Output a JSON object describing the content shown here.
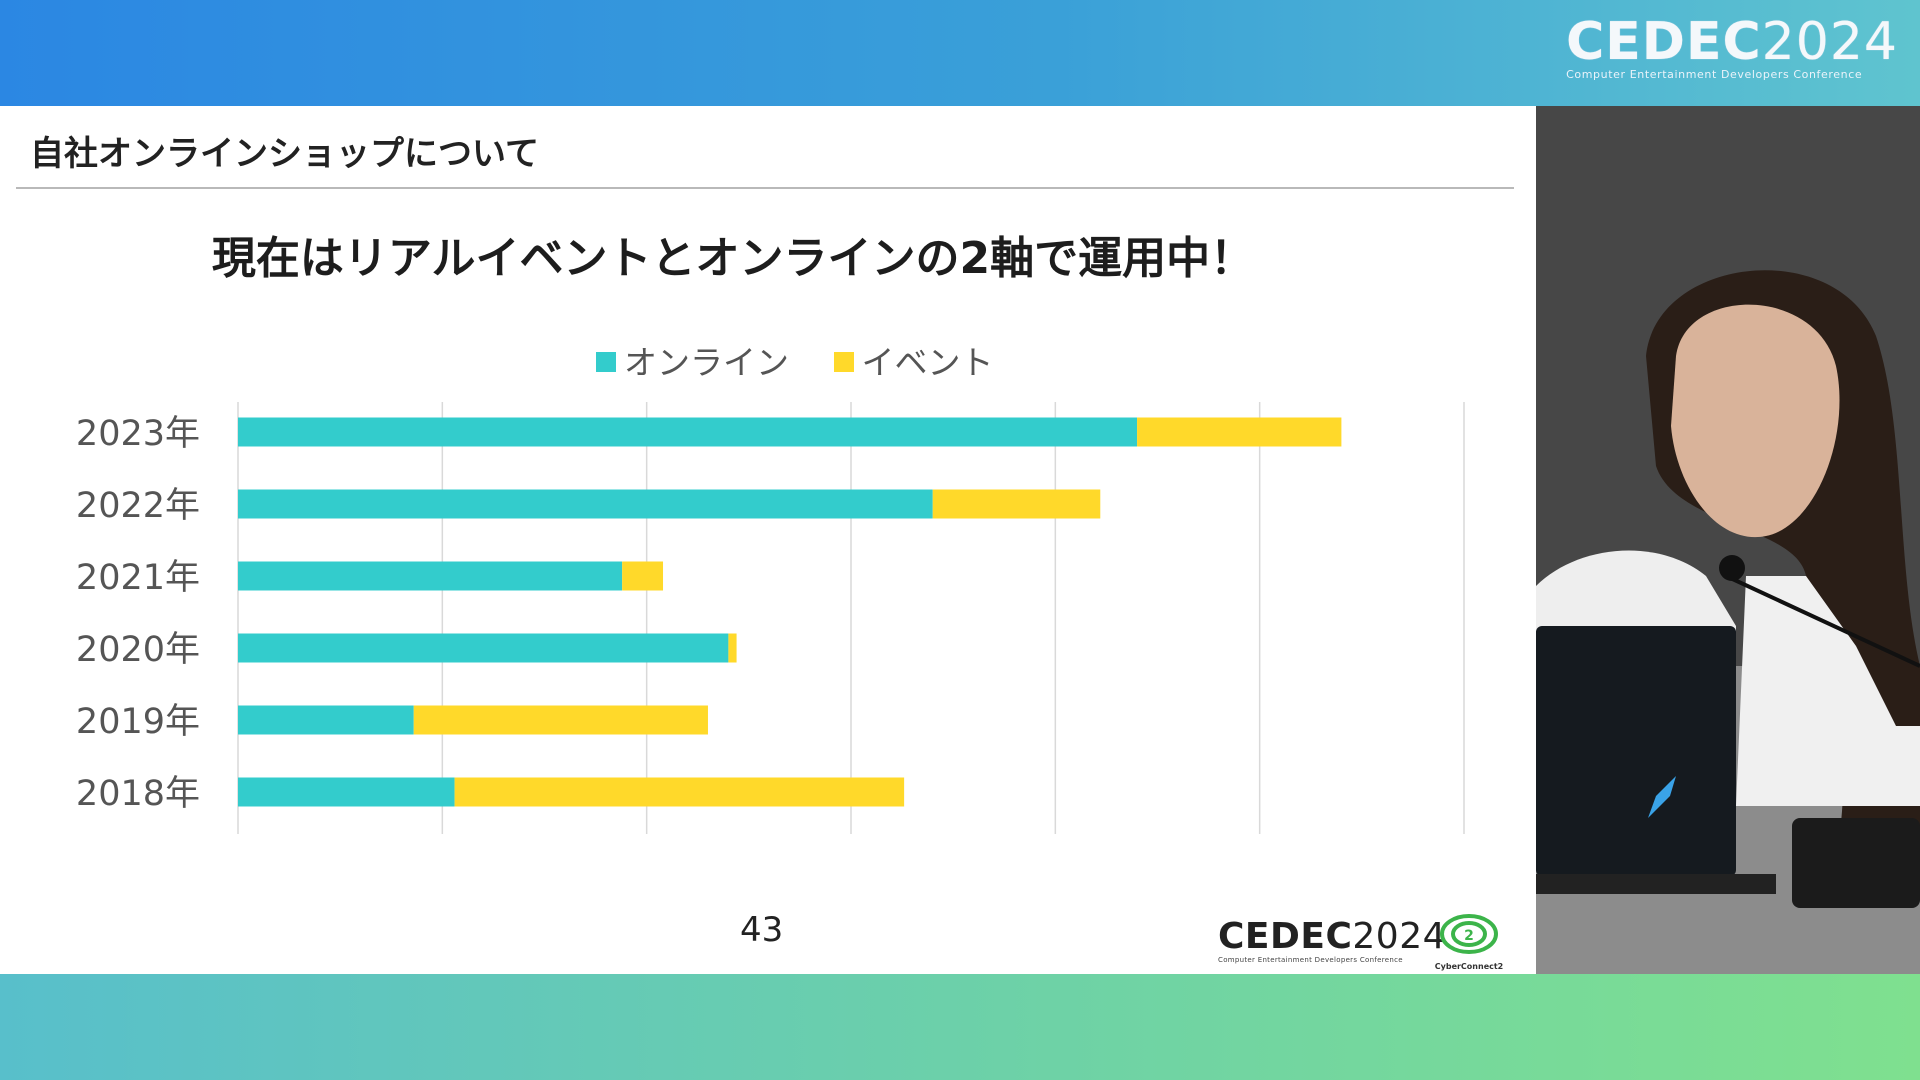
{
  "event_logo": {
    "name": "CEDEC",
    "year": "2024",
    "subtitle": "Computer Entertainment Developers Conference"
  },
  "slide": {
    "title": "自社オンラインショップについて",
    "headline": "現在はリアルイベントとオンラインの2軸で運用中！",
    "page_number": "43",
    "sponsor_logo": "CyberConnect2"
  },
  "colors": {
    "online": "#33cccc",
    "event": "#ffd92a",
    "gridline": "#d9d9d9"
  },
  "chart_data": {
    "type": "bar",
    "orientation": "horizontal",
    "stacked": true,
    "categories": [
      "2023年",
      "2022年",
      "2021年",
      "2020年",
      "2019年",
      "2018年"
    ],
    "series": [
      {
        "name": "オンライン",
        "values": [
          44,
          34,
          18.8,
          24,
          8.6,
          10.6
        ]
      },
      {
        "name": "イベント",
        "values": [
          10,
          8.2,
          2,
          0.4,
          14.4,
          22
        ]
      }
    ],
    "xlim": [
      0,
      60
    ],
    "grid": true,
    "legend": "top",
    "title": "",
    "xlabel": "",
    "ylabel": ""
  },
  "icons": {
    "sponsor": "cyberconnect2-logo-icon",
    "speaker_feed": "speaker-video-feed"
  }
}
